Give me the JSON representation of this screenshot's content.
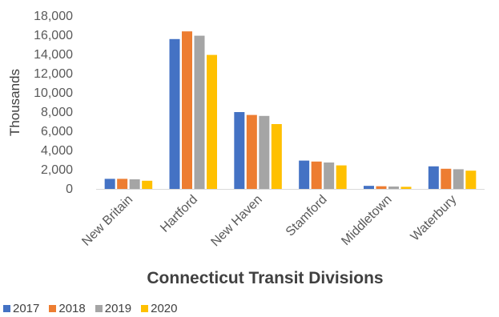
{
  "chart_data": {
    "type": "bar",
    "xlabel": "Connecticut Transit Divisions",
    "ylabel": "Thousands",
    "ylim": [
      0,
      18000
    ],
    "yticks": [
      "0",
      "2,000",
      "4,000",
      "6,000",
      "8,000",
      "10,000",
      "12,000",
      "14,000",
      "16,000",
      "18,000"
    ],
    "categories": [
      "New Britain",
      "Hartford",
      "New Haven",
      "Stamford",
      "Middletown",
      "Waterbury"
    ],
    "series": [
      {
        "name": "2017",
        "color": "#4472C4",
        "values": [
          1050,
          15600,
          8000,
          2950,
          320,
          2350
        ]
      },
      {
        "name": "2018",
        "color": "#ED7D31",
        "values": [
          1050,
          16400,
          7700,
          2850,
          280,
          2100
        ]
      },
      {
        "name": "2019",
        "color": "#A5A5A5",
        "values": [
          1000,
          15950,
          7600,
          2750,
          250,
          2050
        ]
      },
      {
        "name": "2020",
        "color": "#FFC000",
        "values": [
          850,
          13950,
          6750,
          2450,
          220,
          1900
        ]
      }
    ],
    "grid": false,
    "legend": "bottom-left"
  }
}
